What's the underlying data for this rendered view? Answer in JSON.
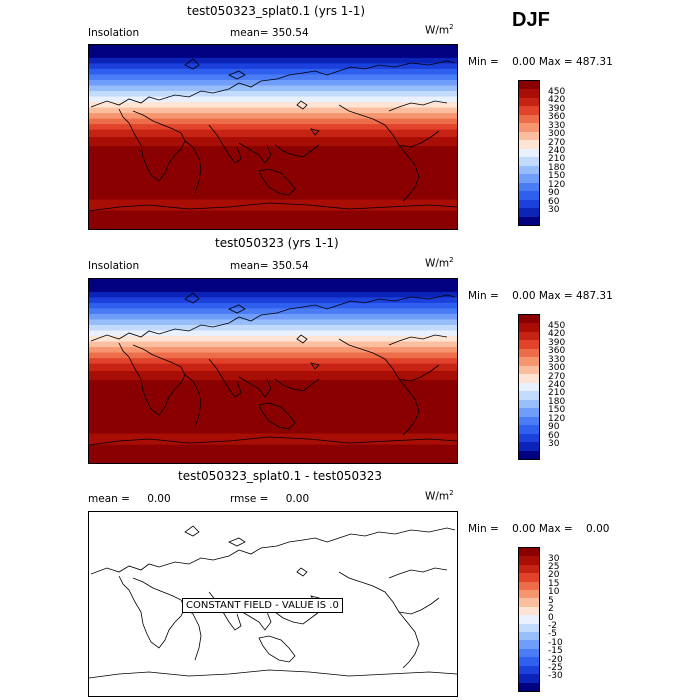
{
  "season": "DJF",
  "units_prefix": "W/m",
  "units_sup": "2",
  "palette_insolation": [
    "#000080",
    "#0c23b8",
    "#1c40dc",
    "#2f5fee",
    "#4a7cf6",
    "#6f9df9",
    "#98bdfb",
    "#c2dafc",
    "#e8f1fd",
    "#fde4d4",
    "#fbbfa0",
    "#f59671",
    "#ed6c49",
    "#e0432a",
    "#c72314",
    "#a80d06",
    "#8a0000"
  ],
  "palette_diff": [
    "#000080",
    "#0c23b8",
    "#1c40dc",
    "#2f5fee",
    "#4a7cf6",
    "#6f9df9",
    "#98bdfb",
    "#c2dafc",
    "#e8f1fd",
    "#fde4d4",
    "#fbbfa0",
    "#f59671",
    "#ed6c49",
    "#e0432a",
    "#c72314",
    "#a80d06",
    "#8a0000"
  ],
  "panel1": {
    "title": "test050323_splat0.1 (yrs 1-1)",
    "left_label": "Insolation",
    "mean_label": "mean=",
    "mean_value": "350.54",
    "min_label": "Min =",
    "min_value": "0.00",
    "max_label": "Max =",
    "max_value": "487.31",
    "levels": [
      "450",
      "420",
      "390",
      "360",
      "330",
      "300",
      "270",
      "240",
      "210",
      "180",
      "150",
      "120",
      "90",
      "60",
      "30"
    ]
  },
  "panel2": {
    "title": "test050323 (yrs 1-1)",
    "left_label": "Insolation",
    "mean_label": "mean=",
    "mean_value": "350.54",
    "min_label": "Min =",
    "min_value": "0.00",
    "max_label": "Max =",
    "max_value": "487.31",
    "levels": [
      "450",
      "420",
      "390",
      "360",
      "330",
      "300",
      "270",
      "240",
      "210",
      "180",
      "150",
      "120",
      "90",
      "60",
      "30"
    ]
  },
  "panel3": {
    "title": "test050323_splat0.1 - test050323",
    "mean_label": "mean =",
    "mean_value": "0.00",
    "rmse_label": "rmse =",
    "rmse_value": "0.00",
    "min_label": "Min =",
    "min_value": "0.00",
    "max_label": "Max =",
    "max_value": "0.00",
    "constant_text": "CONSTANT FIELD - VALUE IS .0",
    "levels": [
      "30",
      "25",
      "20",
      "15",
      "10",
      "5",
      "2",
      "0",
      "-2",
      "-5",
      "-10",
      "-15",
      "-20",
      "-25",
      "-30"
    ]
  }
}
